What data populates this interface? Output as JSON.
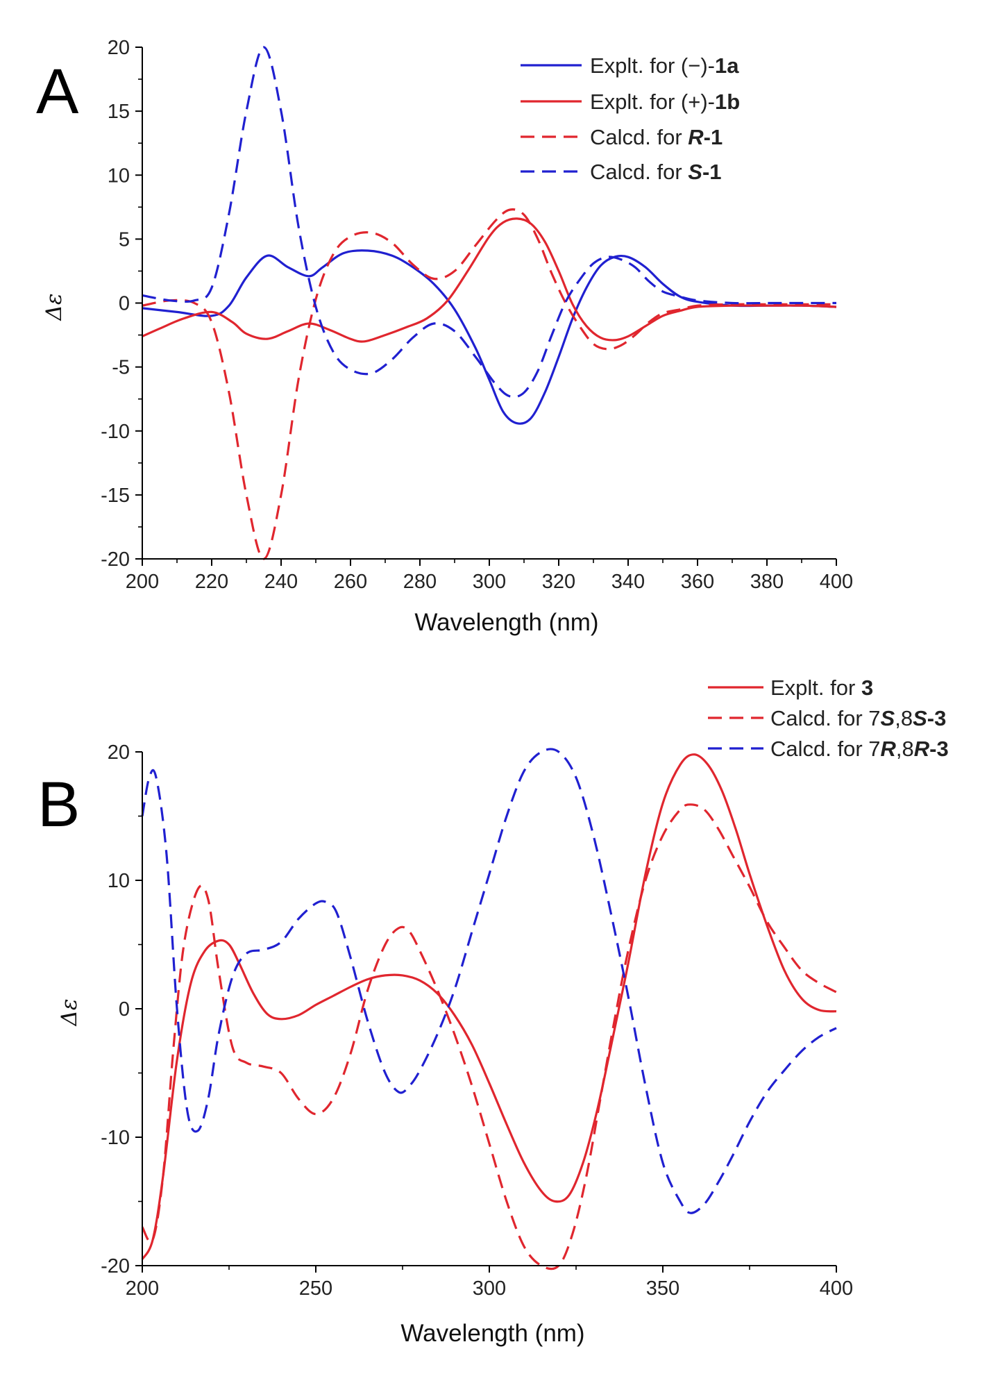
{
  "chart_data": [
    {
      "type": "line",
      "panel_label": "A",
      "xlabel": "Wavelength (nm)",
      "ylabel": "Δε",
      "xlim": [
        200,
        400
      ],
      "ylim": [
        -20,
        20
      ],
      "xticks": [
        200,
        220,
        240,
        260,
        280,
        300,
        320,
        340,
        360,
        380,
        400
      ],
      "xtick_labels": [
        "200",
        "220",
        "240",
        "260",
        "280",
        "300",
        "320",
        "340",
        "360",
        "380",
        "400"
      ],
      "yticks": [
        20,
        15,
        10,
        5,
        0,
        -5,
        -10,
        -15,
        -20
      ],
      "ytick_labels": [
        "20",
        "15",
        "10",
        "5",
        "0",
        "-5",
        "-10",
        "-15",
        "-20"
      ],
      "legend_position": "top-right",
      "series": [
        {
          "name": "Explt. for (−)-1a",
          "legend": {
            "prefix": "Explt. for (−)-",
            "bold": "1a",
            "bold_italic": "",
            "suffix": ""
          },
          "color": "#2020d0",
          "dash": "solid",
          "x": [
            200,
            210,
            220,
            225,
            230,
            236,
            242,
            248,
            252,
            258,
            265,
            272,
            278,
            284,
            290,
            296,
            300,
            304,
            308,
            312,
            316,
            320,
            324,
            328,
            332,
            336,
            340,
            345,
            350,
            355,
            360,
            370,
            380,
            390,
            400
          ],
          "y": [
            -0.4,
            -0.7,
            -1.0,
            -0.2,
            2.0,
            3.7,
            2.8,
            2.1,
            2.8,
            3.9,
            4.1,
            3.7,
            2.8,
            1.5,
            -0.5,
            -3.5,
            -6.0,
            -8.5,
            -9.4,
            -9.0,
            -7.0,
            -4.2,
            -1.2,
            1.2,
            2.9,
            3.6,
            3.6,
            2.8,
            1.5,
            0.5,
            0.1,
            -0.2,
            -0.2,
            -0.2,
            -0.3
          ]
        },
        {
          "name": "Explt. for (+)-1b",
          "legend": {
            "prefix": "Explt. for (+)-",
            "bold": "1b",
            "bold_italic": "",
            "suffix": ""
          },
          "color": "#e0262e",
          "dash": "solid",
          "x": [
            200,
            205,
            212,
            220,
            226,
            230,
            236,
            242,
            248,
            254,
            260,
            264,
            270,
            276,
            282,
            288,
            294,
            300,
            304,
            308,
            312,
            316,
            320,
            324,
            328,
            332,
            336,
            340,
            345,
            350,
            355,
            360,
            370,
            380,
            390,
            400
          ],
          "y": [
            -2.6,
            -2.0,
            -1.2,
            -0.7,
            -1.5,
            -2.4,
            -2.8,
            -2.2,
            -1.6,
            -2.1,
            -2.8,
            -3.0,
            -2.5,
            -1.9,
            -1.2,
            0.2,
            2.6,
            5.2,
            6.3,
            6.6,
            6.2,
            4.8,
            2.5,
            -0.1,
            -1.8,
            -2.7,
            -2.9,
            -2.6,
            -1.8,
            -1.0,
            -0.6,
            -0.3,
            -0.2,
            -0.2,
            -0.2,
            -0.3
          ]
        },
        {
          "name": "Calcd. for R-1",
          "legend": {
            "prefix": "Calcd. for ",
            "bold": "",
            "bold_italic": "R",
            "suffix": "-1"
          },
          "color": "#e0262e",
          "dash": "dashed",
          "x": [
            200,
            208,
            215,
            220,
            225,
            230,
            235,
            240,
            245,
            250,
            255,
            260,
            266,
            272,
            278,
            284,
            290,
            296,
            302,
            306,
            310,
            314,
            318,
            322,
            326,
            330,
            334,
            338,
            342,
            346,
            350,
            355,
            360,
            370,
            380,
            390,
            400
          ],
          "y": [
            -0.2,
            0.2,
            0.0,
            -1.5,
            -7.0,
            -15.0,
            -20.0,
            -15.0,
            -6.0,
            0.3,
            3.8,
            5.2,
            5.5,
            4.7,
            3.0,
            1.9,
            2.5,
            4.5,
            6.5,
            7.3,
            6.9,
            5.0,
            2.3,
            0.0,
            -1.8,
            -3.2,
            -3.6,
            -3.3,
            -2.5,
            -1.5,
            -0.8,
            -0.5,
            -0.2,
            -0.1,
            -0.1,
            -0.1,
            -0.1
          ]
        },
        {
          "name": "Calcd. for S-1",
          "legend": {
            "prefix": "Calcd. for ",
            "bold": "",
            "bold_italic": "S",
            "suffix": "-1"
          },
          "color": "#2020d0",
          "dash": "dashed",
          "x": [
            200,
            208,
            215,
            220,
            225,
            230,
            235,
            240,
            245,
            250,
            255,
            260,
            266,
            272,
            278,
            284,
            290,
            296,
            302,
            306,
            310,
            314,
            318,
            322,
            326,
            330,
            334,
            338,
            342,
            346,
            350,
            355,
            360,
            370,
            380,
            390,
            400
          ],
          "y": [
            0.6,
            0.2,
            0.2,
            1.2,
            7.0,
            15.0,
            20.0,
            15.0,
            6.0,
            -0.3,
            -3.8,
            -5.2,
            -5.5,
            -4.4,
            -2.7,
            -1.6,
            -2.2,
            -4.2,
            -6.4,
            -7.3,
            -7.0,
            -5.3,
            -2.5,
            0.1,
            1.8,
            3.1,
            3.6,
            3.4,
            2.8,
            1.7,
            0.9,
            0.5,
            0.2,
            0.0,
            0.0,
            0.0,
            0.0
          ]
        }
      ]
    },
    {
      "type": "line",
      "panel_label": "B",
      "xlabel": "Wavelength (nm)",
      "ylabel": "Δε",
      "xlim": [
        200,
        400
      ],
      "ylim": [
        -20,
        20
      ],
      "xticks": [
        200,
        250,
        300,
        350,
        400
      ],
      "xtick_labels": [
        "200",
        "250",
        "300",
        "350",
        "400"
      ],
      "yticks": [
        20,
        10,
        0,
        -10,
        -20
      ],
      "ytick_labels": [
        "20",
        "10",
        "0",
        "-10",
        "-20"
      ],
      "legend_position": "top-right",
      "series": [
        {
          "name": "Explt. for 3",
          "legend": {
            "prefix": "Explt. for ",
            "bold": "3",
            "parts": []
          },
          "color": "#e0262e",
          "dash": "solid",
          "x": [
            200,
            203,
            206,
            210,
            214,
            218,
            222,
            225,
            228,
            232,
            236,
            240,
            245,
            250,
            255,
            260,
            265,
            270,
            275,
            280,
            285,
            290,
            295,
            300,
            305,
            310,
            315,
            319,
            323,
            327,
            331,
            335,
            340,
            345,
            350,
            355,
            359,
            363,
            367,
            371,
            375,
            380,
            385,
            390,
            395,
            400
          ],
          "y": [
            -19.5,
            -18.0,
            -13.0,
            -4.0,
            2.0,
            4.5,
            5.3,
            5.0,
            3.5,
            1.2,
            -0.4,
            -0.8,
            -0.5,
            0.3,
            1.0,
            1.7,
            2.3,
            2.6,
            2.6,
            2.2,
            1.2,
            -0.5,
            -2.8,
            -5.8,
            -9.0,
            -12.0,
            -14.2,
            -15.0,
            -14.5,
            -12.0,
            -8.0,
            -3.0,
            3.5,
            10.5,
            16.0,
            19.0,
            19.8,
            19.0,
            17.0,
            14.0,
            10.5,
            6.5,
            3.0,
            0.8,
            -0.1,
            -0.2
          ]
        },
        {
          "name": "Calcd. for 7S,8S-3",
          "legend": {
            "prefix": "Calcd. for ",
            "parts": [
              [
                "7",
                ""
              ],
              [
                "S",
                "bi"
              ],
              [
                ",8",
                ""
              ],
              [
                "S",
                "bi"
              ],
              [
                "-3",
                "b"
              ]
            ]
          },
          "color": "#e0262e",
          "dash": "dashed",
          "x": [
            200,
            203,
            206,
            209,
            212,
            216,
            219,
            222,
            226,
            230,
            235,
            240,
            245,
            250,
            255,
            260,
            265,
            270,
            274,
            277,
            280,
            285,
            290,
            295,
            300,
            305,
            310,
            315,
            320,
            324,
            328,
            332,
            336,
            340,
            345,
            350,
            355,
            358,
            362,
            366,
            370,
            375,
            380,
            385,
            390,
            395,
            400
          ],
          "y": [
            -17.0,
            -18.0,
            -13.0,
            -3.0,
            5.0,
            9.3,
            8.5,
            3.0,
            -3.0,
            -4.2,
            -4.5,
            -5.0,
            -7.0,
            -8.2,
            -7.0,
            -3.5,
            1.5,
            5.0,
            6.3,
            6.0,
            4.5,
            1.5,
            -2.0,
            -6.0,
            -10.5,
            -15.0,
            -18.5,
            -20.0,
            -20.0,
            -17.5,
            -13.0,
            -7.0,
            -1.0,
            4.5,
            10.0,
            13.5,
            15.5,
            15.9,
            15.5,
            14.0,
            12.0,
            9.5,
            6.8,
            4.8,
            3.0,
            2.0,
            1.3
          ]
        },
        {
          "name": "Calcd. for 7R,8R-3",
          "legend": {
            "prefix": "Calcd. for ",
            "parts": [
              [
                "7",
                ""
              ],
              [
                "R",
                "bi"
              ],
              [
                ",8",
                ""
              ],
              [
                "R",
                "bi"
              ],
              [
                "-3",
                "b"
              ]
            ]
          },
          "color": "#2020d0",
          "dash": "dashed",
          "x": [
            200,
            202,
            204,
            207,
            210,
            213,
            216,
            219,
            222,
            226,
            230,
            235,
            240,
            245,
            250,
            253,
            256,
            260,
            265,
            270,
            274,
            277,
            280,
            285,
            290,
            295,
            300,
            305,
            310,
            315,
            320,
            325,
            330,
            335,
            340,
            345,
            350,
            355,
            358,
            362,
            366,
            370,
            375,
            380,
            385,
            390,
            395,
            400
          ],
          "y": [
            15.0,
            18.0,
            18.0,
            12.0,
            0.0,
            -8.0,
            -9.5,
            -7.0,
            -2.0,
            2.5,
            4.3,
            4.6,
            5.2,
            7.0,
            8.2,
            8.3,
            7.5,
            4.0,
            -1.0,
            -5.0,
            -6.5,
            -6.0,
            -4.8,
            -2.0,
            1.5,
            6.0,
            10.5,
            15.0,
            18.5,
            20.0,
            20.0,
            18.0,
            13.5,
            7.5,
            1.0,
            -6.0,
            -12.0,
            -15.0,
            -15.9,
            -15.2,
            -13.5,
            -11.5,
            -8.8,
            -6.5,
            -4.8,
            -3.3,
            -2.2,
            -1.5
          ]
        }
      ]
    }
  ]
}
